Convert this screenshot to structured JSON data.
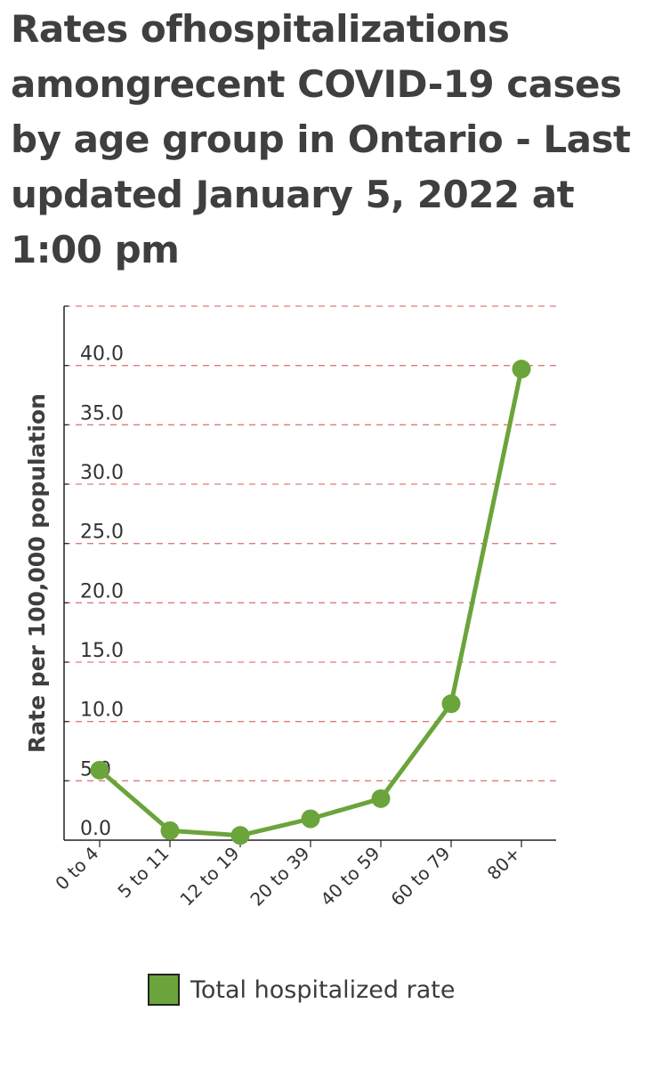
{
  "title": "Rates ofhospitalizations amongrecent COVID-19 cases by age group  in Ontario - Last updated January 5, 2022 at 1:00 pm",
  "colors": {
    "series": "#6ba43a",
    "grid": "#e07a7a",
    "axis": "#222222"
  },
  "chart_data": {
    "type": "line",
    "title": "Rates ofhospitalizations amongrecent COVID-19 cases by age group  in Ontario - Last updated January 5, 2022 at 1:00 pm",
    "xlabel": "",
    "ylabel": "Rate per 100,000 population",
    "categories": [
      "0 to 4",
      "5 to 11",
      "12 to 19",
      "20 to 39",
      "40 to 59",
      "60 to 79",
      "80+"
    ],
    "series": [
      {
        "name": "Total hospitalized rate",
        "values": [
          5.9,
          0.8,
          0.4,
          1.8,
          3.5,
          11.5,
          39.7
        ]
      }
    ],
    "yticks": [
      "0.0",
      "5.0",
      "10.0",
      "15.0",
      "20.0",
      "25.0",
      "30.0",
      "35.0",
      "40.0"
    ],
    "ylim": [
      0,
      45
    ],
    "grid": true,
    "legend": "bottom"
  }
}
